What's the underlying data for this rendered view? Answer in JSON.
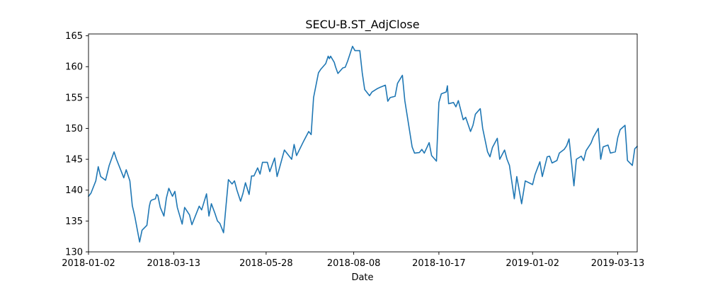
{
  "chart_data": {
    "type": "line",
    "title": "SECU-B.ST_AdjClose",
    "xlabel": "Date",
    "ylabel": "",
    "x_range": [
      "2018-01-02",
      "2019-03-29"
    ],
    "ylim": [
      130,
      165.3
    ],
    "x_ticks": [
      "2018-01-02",
      "2018-03-13",
      "2018-05-28",
      "2018-08-08",
      "2018-10-17",
      "2019-01-02",
      "2019-03-13"
    ],
    "y_ticks": [
      130,
      135,
      140,
      145,
      150,
      155,
      160,
      165
    ],
    "grid": false,
    "color": "#1f77b4",
    "series": [
      {
        "x": [
          "2018-01-02",
          "2018-01-04",
          "2018-01-08",
          "2018-01-10",
          "2018-01-12",
          "2018-01-16",
          "2018-01-19",
          "2018-01-23",
          "2018-01-25",
          "2018-01-29",
          "2018-01-31",
          "2018-02-02",
          "2018-02-05",
          "2018-02-07",
          "2018-02-09",
          "2018-02-13",
          "2018-02-15",
          "2018-02-19",
          "2018-02-21",
          "2018-02-22",
          "2018-02-23",
          "2018-02-26",
          "2018-02-27",
          "2018-02-28",
          "2018-03-02",
          "2018-03-05",
          "2018-03-07",
          "2018-03-09",
          "2018-03-12",
          "2018-03-14",
          "2018-03-16",
          "2018-03-20",
          "2018-03-22",
          "2018-03-26",
          "2018-03-28",
          "2018-04-03",
          "2018-04-05",
          "2018-04-09",
          "2018-04-11",
          "2018-04-13",
          "2018-04-16",
          "2018-04-18",
          "2018-04-20",
          "2018-04-23",
          "2018-04-24",
          "2018-04-25",
          "2018-04-27",
          "2018-04-30",
          "2018-05-02",
          "2018-05-04",
          "2018-05-07",
          "2018-05-09",
          "2018-05-11",
          "2018-05-14",
          "2018-05-16",
          "2018-05-18",
          "2018-05-21",
          "2018-05-23",
          "2018-05-25",
          "2018-05-29",
          "2018-05-31",
          "2018-06-04",
          "2018-06-06",
          "2018-06-08",
          "2018-06-12",
          "2018-06-14",
          "2018-06-18",
          "2018-06-20",
          "2018-06-22",
          "2018-06-26",
          "2018-06-28",
          "2018-07-02",
          "2018-07-04",
          "2018-07-06",
          "2018-07-10",
          "2018-07-12",
          "2018-07-16",
          "2018-07-18",
          "2018-07-19",
          "2018-07-20",
          "2018-07-23",
          "2018-07-24",
          "2018-07-26",
          "2018-07-30",
          "2018-08-01",
          "2018-08-03",
          "2018-08-07",
          "2018-08-09",
          "2018-08-13",
          "2018-08-15",
          "2018-08-17",
          "2018-08-21",
          "2018-08-23",
          "2018-08-27",
          "2018-08-29",
          "2018-09-03",
          "2018-09-05",
          "2018-09-07",
          "2018-09-11",
          "2018-09-13",
          "2018-09-17",
          "2018-09-19",
          "2018-09-21",
          "2018-09-25",
          "2018-09-27",
          "2018-10-01",
          "2018-10-03",
          "2018-10-05",
          "2018-10-09",
          "2018-10-11",
          "2018-10-15",
          "2018-10-17",
          "2018-10-19",
          "2018-10-23",
          "2018-10-24",
          "2018-10-25",
          "2018-10-29",
          "2018-10-31",
          "2018-11-02",
          "2018-11-06",
          "2018-11-08",
          "2018-11-12",
          "2018-11-14",
          "2018-11-16",
          "2018-11-20",
          "2018-11-22",
          "2018-11-26",
          "2018-11-28",
          "2018-11-30",
          "2018-12-04",
          "2018-12-06",
          "2018-12-10",
          "2018-12-12",
          "2018-12-14",
          "2018-12-18",
          "2018-12-20",
          "2018-12-24",
          "2018-12-27",
          "2019-01-02",
          "2019-01-04",
          "2019-01-08",
          "2019-01-10",
          "2019-01-14",
          "2019-01-16",
          "2019-01-18",
          "2019-01-22",
          "2019-01-24",
          "2019-01-28",
          "2019-01-30",
          "2019-02-01",
          "2019-02-05",
          "2019-02-07",
          "2019-02-11",
          "2019-02-13",
          "2019-02-15",
          "2019-02-19",
          "2019-02-21",
          "2019-02-25",
          "2019-02-27",
          "2019-03-01",
          "2019-03-05",
          "2019-03-07",
          "2019-03-11",
          "2019-03-13",
          "2019-03-15",
          "2019-03-19",
          "2019-03-21",
          "2019-03-25",
          "2019-03-27",
          "2019-03-29"
        ],
        "y": [
          139.0,
          139.5,
          141.5,
          143.8,
          142.2,
          141.6,
          144.0,
          146.2,
          145.0,
          143.0,
          142.0,
          143.3,
          141.5,
          137.5,
          135.8,
          131.6,
          133.5,
          134.3,
          137.4,
          138.2,
          138.4,
          138.6,
          139.3,
          139.1,
          137.2,
          135.8,
          138.7,
          140.3,
          139.0,
          139.8,
          137.2,
          134.5,
          137.2,
          136.0,
          134.4,
          137.4,
          136.8,
          139.4,
          135.8,
          137.8,
          136.2,
          135.0,
          134.6,
          133.1,
          135.2,
          137.4,
          141.7,
          141.0,
          141.5,
          140.0,
          138.2,
          139.5,
          141.2,
          139.3,
          142.3,
          142.3,
          143.6,
          142.6,
          144.5,
          144.5,
          143.0,
          145.2,
          142.2,
          143.6,
          146.5,
          146.0,
          145.0,
          147.4,
          145.6,
          147.2,
          148.0,
          149.5,
          149.0,
          155.0,
          159.0,
          159.6,
          160.5,
          161.7,
          161.3,
          161.7,
          160.7,
          160.0,
          158.9,
          159.8,
          159.9,
          160.9,
          163.3,
          162.6,
          162.6,
          159.0,
          156.3,
          155.3,
          155.9,
          156.4,
          156.6,
          157.0,
          154.4,
          155.0,
          155.2,
          157.3,
          158.6,
          154.5,
          152.0,
          147.0,
          146.0,
          146.1,
          146.6,
          146.0,
          147.7,
          145.6,
          144.7,
          154.2,
          155.6,
          155.9,
          156.9,
          154.0,
          154.2,
          153.5,
          154.5,
          151.4,
          151.8,
          149.5,
          150.5,
          152.3,
          153.2,
          150.0,
          146.2,
          145.4,
          146.9,
          148.4,
          145.0,
          146.5,
          145.0,
          144.0,
          138.6,
          142.2,
          137.8,
          141.5,
          140.9,
          142.5,
          144.6,
          142.2,
          145.4,
          145.5,
          144.4,
          144.8,
          146.0,
          146.6,
          147.2,
          148.3,
          140.7,
          145.0,
          145.5,
          144.8,
          146.4,
          147.6,
          148.6,
          150.0,
          145.0,
          147.0,
          147.3,
          146.0,
          146.2,
          148.5,
          149.8,
          150.5,
          144.8,
          144.0,
          146.7,
          147.1
        ]
      }
    ]
  }
}
